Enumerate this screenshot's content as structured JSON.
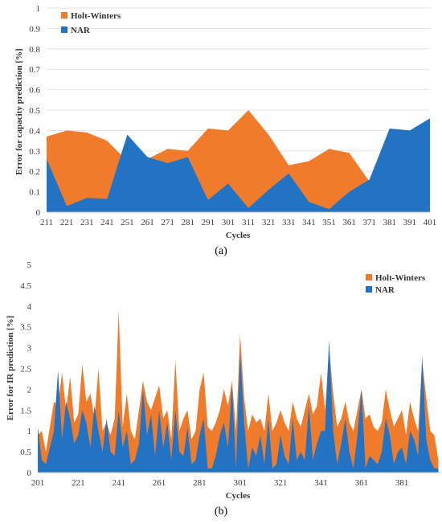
{
  "colors": {
    "holt": "#F07C2B",
    "nar": "#2273C3"
  },
  "chart_data": [
    {
      "type": "area",
      "caption": "(a)",
      "xlabel": "Cycles",
      "ylabel": "Error for capacity prediction [%]",
      "ylim": [
        0,
        1
      ],
      "y_ticks": [
        "0",
        "0.1",
        "0.2",
        "0.3",
        "0.4",
        "0.5",
        "0.6",
        "0.7",
        "0.8",
        "0.9",
        "1"
      ],
      "categories": [
        "211",
        "221",
        "231",
        "241",
        "251",
        "261",
        "271",
        "281",
        "291",
        "301",
        "311",
        "321",
        "331",
        "341",
        "351",
        "361",
        "371",
        "381",
        "391",
        "401"
      ],
      "legend_position": "top-left",
      "series": [
        {
          "name": "Holt-Winters",
          "values": [
            0.37,
            0.4,
            0.39,
            0.35,
            0.25,
            0.26,
            0.31,
            0.3,
            0.41,
            0.4,
            0.5,
            0.38,
            0.23,
            0.25,
            0.31,
            0.29,
            0.15,
            0.0,
            0.0,
            0.0
          ]
        },
        {
          "name": "NAR",
          "values": [
            0.26,
            0.03,
            0.07,
            0.065,
            0.38,
            0.27,
            0.24,
            0.27,
            0.06,
            0.14,
            0.02,
            0.11,
            0.19,
            0.05,
            0.015,
            0.1,
            0.16,
            0.41,
            0.4,
            0.46
          ]
        }
      ]
    },
    {
      "type": "area",
      "caption": "(b)",
      "xlabel": "Cycles",
      "ylabel": "Error for IR prediction [%]",
      "ylim": [
        0,
        5
      ],
      "y_ticks": [
        "0",
        "0.5",
        "1",
        "1.5",
        "2",
        "2.5",
        "3",
        "3.5",
        "4",
        "4.5",
        "5"
      ],
      "x_ticks": [
        "201",
        "221",
        "241",
        "261",
        "281",
        "301",
        "321",
        "341",
        "361",
        "381"
      ],
      "x_range": [
        201,
        400
      ],
      "legend_position": "top-right",
      "series": [
        {
          "name": "Holt-Winters",
          "x": [
            201,
            203,
            205,
            207,
            209,
            211,
            213,
            215,
            217,
            219,
            221,
            223,
            225,
            227,
            229,
            231,
            233,
            235,
            237,
            239,
            241,
            243,
            245,
            247,
            249,
            251,
            253,
            255,
            257,
            259,
            261,
            263,
            265,
            267,
            269,
            271,
            273,
            275,
            277,
            279,
            281,
            283,
            285,
            287,
            289,
            291,
            293,
            295,
            297,
            299,
            301,
            303,
            305,
            307,
            309,
            311,
            313,
            315,
            317,
            319,
            321,
            323,
            325,
            327,
            329,
            331,
            333,
            335,
            337,
            339,
            341,
            343,
            345,
            347,
            349,
            351,
            353,
            355,
            357,
            359,
            361,
            363,
            365,
            367,
            369,
            371,
            373,
            375,
            377,
            379,
            381,
            383,
            385,
            387,
            389,
            391,
            393,
            395,
            397,
            399
          ],
          "values": [
            0.9,
            1.0,
            0.5,
            1.1,
            1.7,
            1.6,
            2.4,
            1.5,
            2.3,
            1.2,
            1.4,
            2.6,
            1.7,
            1.9,
            1.3,
            2.5,
            1.0,
            1.2,
            0.9,
            1.3,
            3.9,
            1.1,
            1.9,
            1.0,
            0.8,
            1.5,
            2.2,
            1.7,
            1.5,
            1.8,
            2.1,
            1.3,
            1.5,
            0.8,
            2.7,
            1.0,
            1.3,
            1.5,
            0.8,
            1.0,
            2.0,
            2.4,
            1.1,
            1.0,
            1.2,
            1.5,
            2.0,
            1.6,
            2.2,
            1.0,
            3.3,
            1.8,
            1.0,
            1.4,
            1.2,
            1.3,
            1.0,
            1.9,
            1.0,
            1.2,
            1.5,
            1.2,
            1.0,
            1.7,
            1.3,
            1.1,
            1.5,
            1.9,
            1.4,
            1.6,
            2.4,
            1.5,
            3.0,
            1.9,
            1.1,
            1.3,
            1.7,
            1.2,
            1.0,
            1.5,
            2.0,
            1.3,
            1.4,
            1.1,
            1.0,
            1.2,
            2.0,
            1.5,
            1.1,
            1.3,
            1.5,
            0.9,
            1.7,
            1.3,
            1.0,
            2.7,
            1.8,
            1.0,
            0.9,
            0.3
          ]
        },
        {
          "name": "NAR",
          "x": [
            201,
            203,
            205,
            207,
            209,
            211,
            213,
            215,
            217,
            219,
            221,
            223,
            225,
            227,
            229,
            231,
            233,
            235,
            237,
            239,
            241,
            243,
            245,
            247,
            249,
            251,
            253,
            255,
            257,
            259,
            261,
            263,
            265,
            267,
            269,
            271,
            273,
            275,
            277,
            279,
            281,
            283,
            285,
            287,
            289,
            291,
            293,
            295,
            297,
            299,
            301,
            303,
            305,
            307,
            309,
            311,
            313,
            315,
            317,
            319,
            321,
            323,
            325,
            327,
            329,
            331,
            333,
            335,
            337,
            339,
            341,
            343,
            345,
            347,
            349,
            351,
            353,
            355,
            357,
            359,
            361,
            363,
            365,
            367,
            369,
            371,
            373,
            375,
            377,
            379,
            381,
            383,
            385,
            387,
            389,
            391,
            393,
            395,
            397,
            399
          ],
          "values": [
            1.1,
            0.3,
            0.2,
            0.6,
            1.0,
            2.45,
            0.8,
            1.7,
            1.3,
            0.7,
            0.9,
            1.5,
            1.2,
            0.6,
            1.6,
            1.0,
            0.5,
            1.3,
            0.5,
            0.4,
            1.5,
            0.6,
            1.0,
            0.2,
            0.3,
            0.7,
            2.0,
            0.9,
            1.4,
            0.4,
            1.5,
            0.6,
            1.2,
            0.3,
            1.5,
            0.5,
            0.4,
            1.1,
            0.2,
            0.3,
            0.9,
            1.3,
            0.1,
            0.1,
            0.4,
            0.9,
            1.2,
            0.6,
            2.1,
            0.1,
            2.9,
            1.2,
            0.1,
            0.6,
            0.4,
            0.9,
            0.2,
            1.3,
            0.1,
            0.2,
            0.9,
            0.4,
            0.2,
            1.3,
            0.3,
            0.5,
            0.3,
            1.6,
            0.3,
            0.7,
            1.0,
            1.0,
            3.2,
            1.0,
            0.2,
            0.7,
            1.3,
            0.5,
            0.1,
            0.9,
            2.0,
            0.1,
            0.4,
            0.3,
            0.2,
            0.5,
            1.3,
            0.9,
            0.2,
            0.5,
            0.6,
            0.2,
            1.0,
            0.8,
            0.4,
            2.8,
            0.8,
            0.3,
            0.1,
            0.1
          ]
        }
      ]
    }
  ]
}
